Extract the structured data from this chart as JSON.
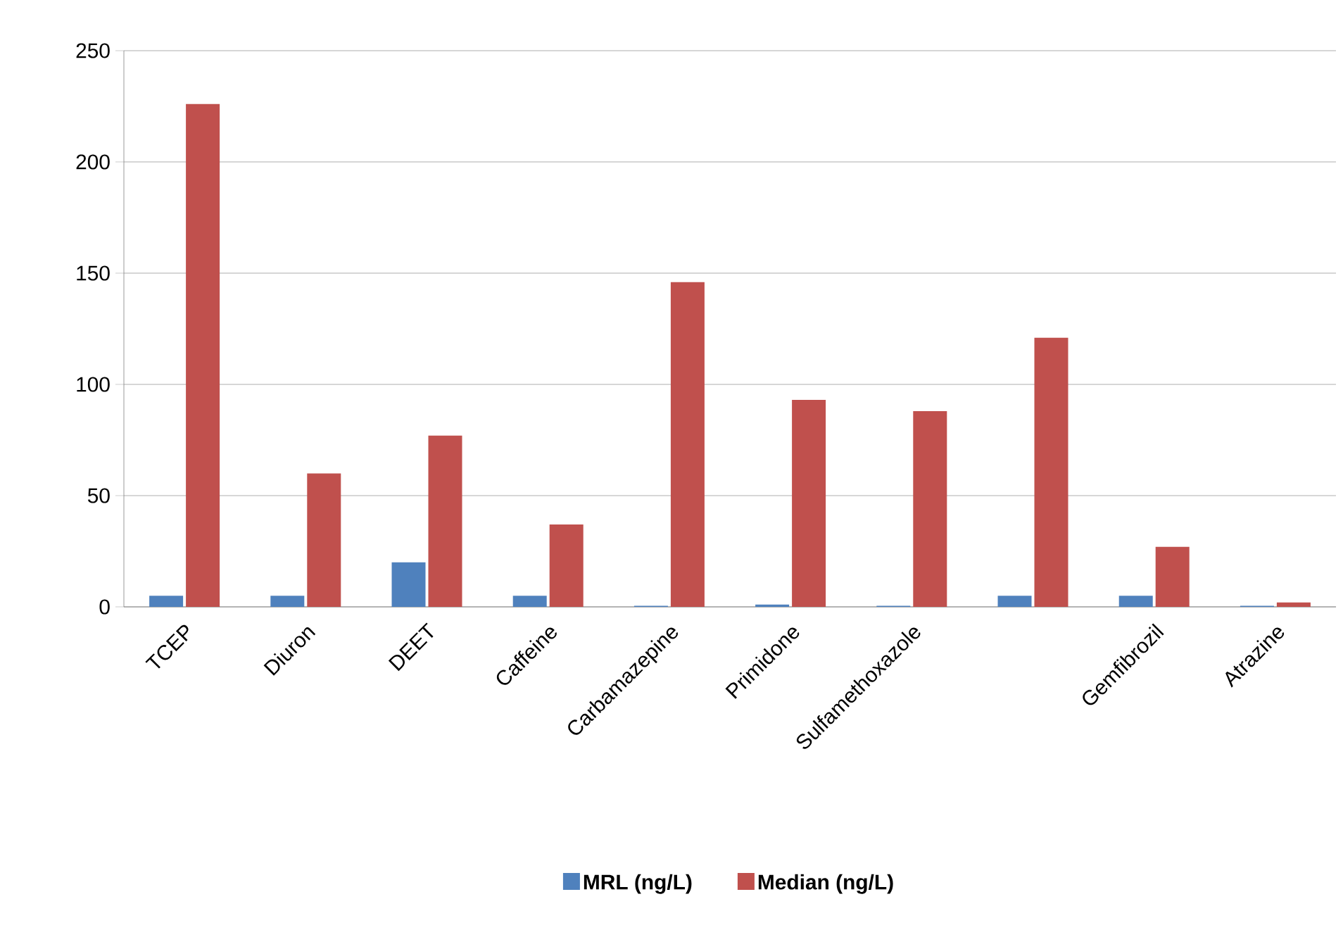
{
  "chart_data": {
    "type": "bar",
    "categories": [
      "TCEP",
      "Diuron",
      "DEET",
      "Caffeine",
      "Carbamazepine",
      "Primidone",
      "Sulfamethoxazole",
      null,
      "Gemfibrozil",
      "Atrazine"
    ],
    "series": [
      {
        "name": "MRL (ng/L)",
        "color": "#4f81bd",
        "values": [
          5,
          5,
          20,
          5,
          0.5,
          1,
          0.5,
          5,
          5,
          0.5
        ]
      },
      {
        "name": "Median (ng/L)",
        "color": "#c0504d",
        "values": [
          226,
          60,
          77,
          37,
          146,
          93,
          88,
          121,
          27,
          2
        ]
      }
    ],
    "ylim": [
      0,
      250
    ],
    "yticks": [
      0,
      50,
      100,
      150,
      200,
      250
    ],
    "grid": "y",
    "legend": "bottom"
  }
}
